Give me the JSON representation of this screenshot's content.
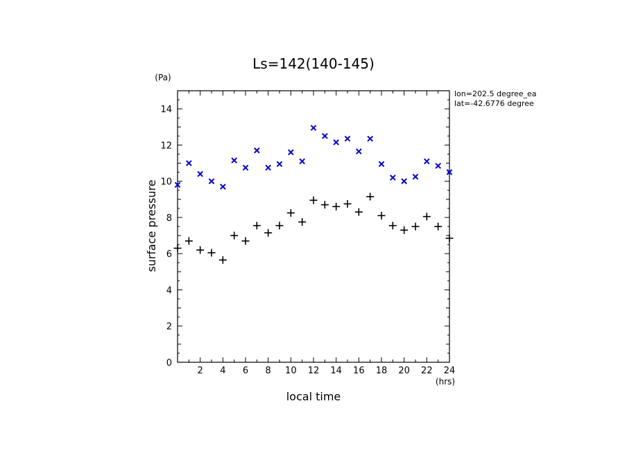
{
  "chart_data": {
    "type": "scatter",
    "title": "Ls=142(140-145)",
    "xlabel": "local time",
    "ylabel": "surface pressure",
    "xunit": "(hrs)",
    "yunit": "(Pa)",
    "xlim": [
      0,
      24
    ],
    "ylim": [
      0,
      15
    ],
    "xticks": [
      2,
      4,
      6,
      8,
      10,
      12,
      14,
      16,
      18,
      20,
      22,
      24
    ],
    "yticks": [
      0,
      2,
      4,
      6,
      8,
      10,
      12,
      14
    ],
    "annotations": [
      "lon=202.5 degree_ea",
      "lat=-42.6776 degree"
    ],
    "series": [
      {
        "marker": "x",
        "color": "#0000cc",
        "x": [
          0,
          1,
          2,
          3,
          4,
          5,
          6,
          7,
          8,
          9,
          10,
          11,
          12,
          13,
          14,
          15,
          16,
          17,
          18,
          19,
          20,
          21,
          22,
          23,
          24
        ],
        "y": [
          9.8,
          11.0,
          10.4,
          10.0,
          9.7,
          11.15,
          10.75,
          11.7,
          10.75,
          10.95,
          11.6,
          11.1,
          12.95,
          12.5,
          12.15,
          12.35,
          11.65,
          12.35,
          10.95,
          10.2,
          10.0,
          10.25,
          11.1,
          10.85,
          10.5
        ]
      },
      {
        "marker": "+",
        "color": "#000000",
        "x": [
          0,
          1,
          2,
          3,
          4,
          5,
          6,
          7,
          8,
          9,
          10,
          11,
          12,
          13,
          14,
          15,
          16,
          17,
          18,
          19,
          20,
          21,
          22,
          23,
          24
        ],
        "y": [
          6.3,
          6.7,
          6.2,
          6.05,
          5.65,
          7.0,
          6.7,
          7.55,
          7.15,
          7.55,
          8.25,
          7.75,
          8.95,
          8.7,
          8.6,
          8.75,
          8.3,
          9.15,
          8.1,
          7.55,
          7.3,
          7.5,
          8.05,
          7.5,
          6.85
        ]
      }
    ]
  }
}
